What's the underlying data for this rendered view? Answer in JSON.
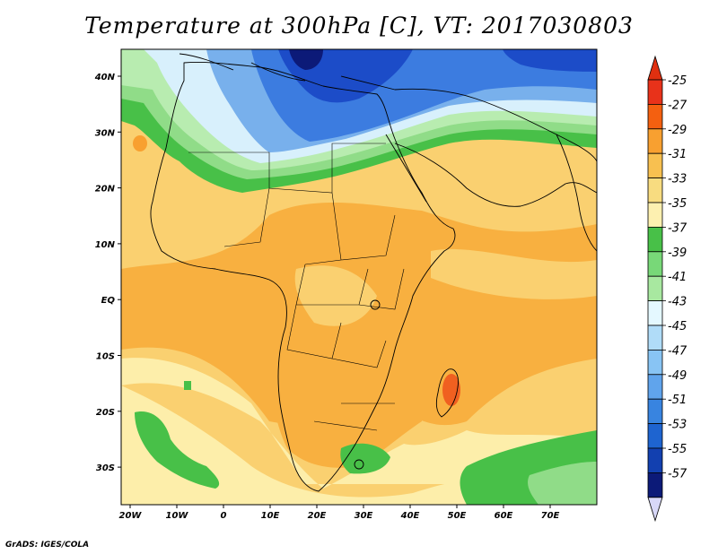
{
  "title": "Temperature at 300hPa [C], VT: 2017030803",
  "footer": "GrADS: IGES/COLA",
  "lat_ticks": [
    "40N",
    "30N",
    "20N",
    "10N",
    "EQ",
    "10S",
    "20S",
    "30S"
  ],
  "lon_ticks": [
    "20W",
    "10W",
    "0",
    "10E",
    "20E",
    "30E",
    "40E",
    "50E",
    "60E",
    "70E"
  ],
  "legend": {
    "levels": [
      "-25",
      "-27",
      "-29",
      "-31",
      "-33",
      "-35",
      "-37",
      "-39",
      "-41",
      "-43",
      "-45",
      "-47",
      "-49",
      "-51",
      "-53",
      "-55",
      "-57"
    ],
    "colors": [
      "#e8321a",
      "#f46010",
      "#f8a030",
      "#f8c050",
      "#f8dc80",
      "#fdf0b0",
      "#48c048",
      "#78d878",
      "#a8e8a0",
      "#e4f8ff",
      "#b0dcf8",
      "#88c4f4",
      "#60a4ec",
      "#3884e0",
      "#1e64d0",
      "#1240b0",
      "#0c1a78"
    ],
    "top_arrow_color": "#e03010",
    "bottom_arrow_color": "#d8d8f8"
  },
  "map_colors": {
    "warm_orange": "#f8b040",
    "light_orange": "#fad070",
    "pale_yellow": "#fdeeaa",
    "green": "#48c048",
    "light_green": "#90dc88",
    "pale_green": "#b8ecb0",
    "pale_blue": "#d8f0fc",
    "mid_blue": "#78b0ec",
    "blue": "#3c7ce0",
    "deep_blue": "#1c4cc8",
    "navy": "#0c1a78",
    "hot": "#f06020"
  }
}
